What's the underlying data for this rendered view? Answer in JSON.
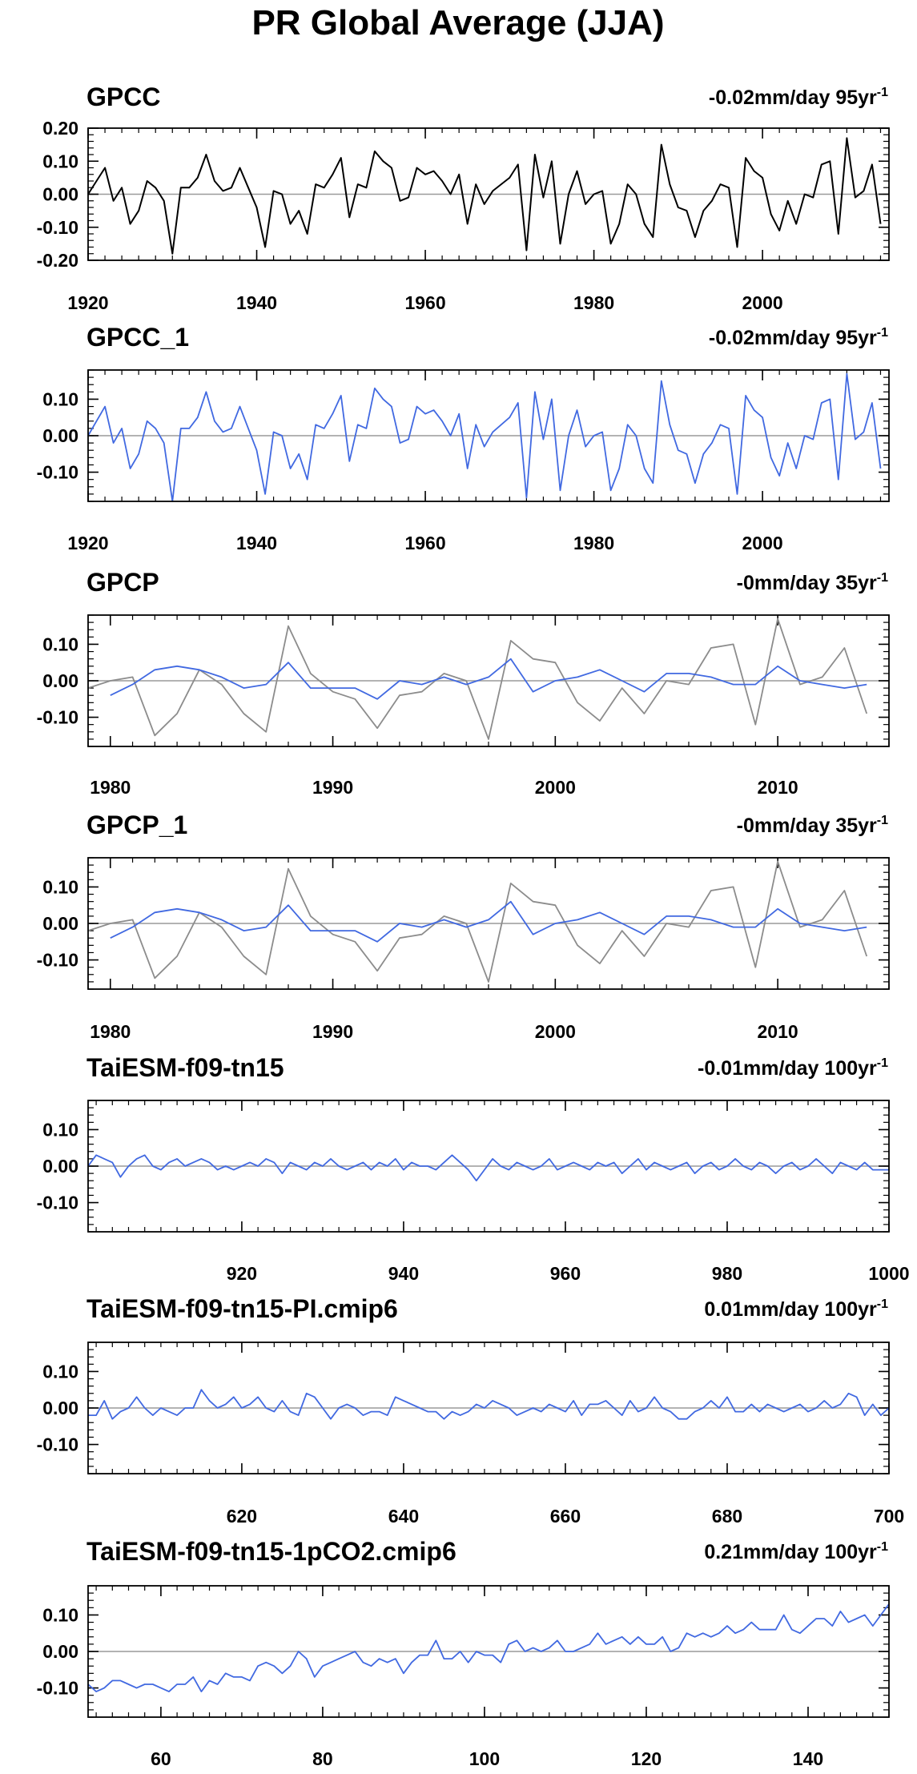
{
  "figure_title": "PR Global Average (JJA)",
  "colors": {
    "black": "#000000",
    "blue": "#4169e1",
    "gray": "#8c8c8c",
    "zero": "#9a9a9a"
  },
  "chart_data": [
    {
      "type": "line",
      "title": "GPCC",
      "trend_label": "-0.02mm/day 95yr",
      "trend_sup": "-1",
      "xlim": [
        1920,
        2015
      ],
      "ylim": [
        -0.2,
        0.2
      ],
      "xticks": [
        1920,
        1940,
        1960,
        1980,
        2000
      ],
      "yticks": [
        -0.2,
        -0.1,
        0.0,
        0.1,
        0.2
      ],
      "ytick_labels": [
        "-0.20",
        "-0.10",
        "0.00",
        "0.10",
        "0.20"
      ],
      "x_start": 1920,
      "series": [
        {
          "color": "black",
          "values": [
            0.0,
            0.04,
            0.08,
            -0.02,
            0.02,
            -0.09,
            -0.05,
            0.04,
            0.02,
            -0.02,
            -0.18,
            0.02,
            0.02,
            0.05,
            0.12,
            0.04,
            0.01,
            0.02,
            0.08,
            0.02,
            -0.04,
            -0.16,
            0.01,
            0.0,
            -0.09,
            -0.05,
            -0.12,
            0.03,
            0.02,
            0.06,
            0.11,
            -0.07,
            0.03,
            0.02,
            0.13,
            0.1,
            0.08,
            -0.02,
            -0.01,
            0.08,
            0.06,
            0.07,
            0.04,
            0.0,
            0.06,
            -0.09,
            0.03,
            -0.03,
            0.01,
            0.03,
            0.05,
            0.09,
            -0.17,
            0.12,
            -0.01,
            0.1,
            -0.15,
            0.0,
            0.07,
            -0.03,
            0.0,
            0.01,
            -0.15,
            -0.09,
            0.03,
            0.0,
            -0.09,
            -0.13,
            0.15,
            0.03,
            -0.04,
            -0.05,
            -0.13,
            -0.05,
            -0.02,
            0.03,
            0.02,
            -0.16,
            0.11,
            0.07,
            0.05,
            -0.06,
            -0.11,
            -0.02,
            -0.09,
            0.0,
            -0.01,
            0.09,
            0.1,
            -0.12,
            0.17,
            -0.01,
            0.01,
            0.09,
            -0.09
          ]
        }
      ]
    },
    {
      "type": "line",
      "title": "GPCC_1",
      "trend_label": "-0.02mm/day 95yr",
      "trend_sup": "-1",
      "xlim": [
        1920,
        2015
      ],
      "ylim": [
        -0.18,
        0.18
      ],
      "xticks": [
        1920,
        1940,
        1960,
        1980,
        2000
      ],
      "yticks": [
        -0.1,
        0.0,
        0.1
      ],
      "ytick_labels": [
        "-0.10",
        "0.00",
        "0.10"
      ],
      "x_start": 1920,
      "series": [
        {
          "color": "blue",
          "values": [
            0.0,
            0.04,
            0.08,
            -0.02,
            0.02,
            -0.09,
            -0.05,
            0.04,
            0.02,
            -0.02,
            -0.18,
            0.02,
            0.02,
            0.05,
            0.12,
            0.04,
            0.01,
            0.02,
            0.08,
            0.02,
            -0.04,
            -0.16,
            0.01,
            0.0,
            -0.09,
            -0.05,
            -0.12,
            0.03,
            0.02,
            0.06,
            0.11,
            -0.07,
            0.03,
            0.02,
            0.13,
            0.1,
            0.08,
            -0.02,
            -0.01,
            0.08,
            0.06,
            0.07,
            0.04,
            0.0,
            0.06,
            -0.09,
            0.03,
            -0.03,
            0.01,
            0.03,
            0.05,
            0.09,
            -0.17,
            0.12,
            -0.01,
            0.1,
            -0.15,
            0.0,
            0.07,
            -0.03,
            0.0,
            0.01,
            -0.15,
            -0.09,
            0.03,
            0.0,
            -0.09,
            -0.13,
            0.15,
            0.03,
            -0.04,
            -0.05,
            -0.13,
            -0.05,
            -0.02,
            0.03,
            0.02,
            -0.16,
            0.11,
            0.07,
            0.05,
            -0.06,
            -0.11,
            -0.02,
            -0.09,
            0.0,
            -0.01,
            0.09,
            0.1,
            -0.12,
            0.17,
            -0.01,
            0.01,
            0.09,
            -0.09
          ]
        }
      ]
    },
    {
      "type": "line",
      "title": "GPCP",
      "trend_label": "-0mm/day 35yr",
      "trend_sup": "-1",
      "xlim": [
        1979,
        2015
      ],
      "ylim": [
        -0.18,
        0.18
      ],
      "xticks": [
        1980,
        1990,
        2000,
        2010
      ],
      "yticks": [
        -0.1,
        0.0,
        0.1
      ],
      "ytick_labels": [
        "-0.10",
        "0.00",
        "0.10"
      ],
      "x_start": 1979,
      "series": [
        {
          "color": "gray",
          "values": [
            -0.02,
            0.0,
            0.01,
            -0.15,
            -0.09,
            0.03,
            -0.01,
            -0.09,
            -0.14,
            0.15,
            0.02,
            -0.03,
            -0.05,
            -0.13,
            -0.04,
            -0.03,
            0.02,
            0.0,
            -0.16,
            0.11,
            0.06,
            0.05,
            -0.06,
            -0.11,
            -0.02,
            -0.09,
            0.0,
            -0.01,
            0.09,
            0.1,
            -0.12,
            0.17,
            -0.01,
            0.01,
            0.09,
            -0.09
          ]
        },
        {
          "color": "blue",
          "x_start": 1980,
          "values": [
            -0.04,
            -0.01,
            0.03,
            0.04,
            0.03,
            0.01,
            -0.02,
            -0.01,
            0.05,
            -0.02,
            -0.02,
            -0.02,
            -0.05,
            0.0,
            -0.01,
            0.01,
            -0.01,
            0.01,
            0.06,
            -0.03,
            0.0,
            0.01,
            0.03,
            0.0,
            -0.03,
            0.02,
            0.02,
            0.01,
            -0.01,
            -0.01,
            0.04,
            0.0,
            -0.01,
            -0.02,
            -0.01
          ]
        }
      ]
    },
    {
      "type": "line",
      "title": "GPCP_1",
      "trend_label": "-0mm/day 35yr",
      "trend_sup": "-1",
      "xlim": [
        1979,
        2015
      ],
      "ylim": [
        -0.18,
        0.18
      ],
      "xticks": [
        1980,
        1990,
        2000,
        2010
      ],
      "yticks": [
        -0.1,
        0.0,
        0.1
      ],
      "ytick_labels": [
        "-0.10",
        "0.00",
        "0.10"
      ],
      "x_start": 1979,
      "series": [
        {
          "color": "gray",
          "values": [
            -0.02,
            0.0,
            0.01,
            -0.15,
            -0.09,
            0.03,
            -0.01,
            -0.09,
            -0.14,
            0.15,
            0.02,
            -0.03,
            -0.05,
            -0.13,
            -0.04,
            -0.03,
            0.02,
            0.0,
            -0.16,
            0.11,
            0.06,
            0.05,
            -0.06,
            -0.11,
            -0.02,
            -0.09,
            0.0,
            -0.01,
            0.09,
            0.1,
            -0.12,
            0.17,
            -0.01,
            0.01,
            0.09,
            -0.09
          ]
        },
        {
          "color": "blue",
          "x_start": 1980,
          "values": [
            -0.04,
            -0.01,
            0.03,
            0.04,
            0.03,
            0.01,
            -0.02,
            -0.01,
            0.05,
            -0.02,
            -0.02,
            -0.02,
            -0.05,
            0.0,
            -0.01,
            0.01,
            -0.01,
            0.01,
            0.06,
            -0.03,
            0.0,
            0.01,
            0.03,
            0.0,
            -0.03,
            0.02,
            0.02,
            0.01,
            -0.01,
            -0.01,
            0.04,
            0.0,
            -0.01,
            -0.02,
            -0.01
          ]
        }
      ]
    },
    {
      "type": "line",
      "title": "TaiESM-f09-tn15",
      "trend_label": "-0.01mm/day 100yr",
      "trend_sup": "-1",
      "xlim": [
        901,
        1000
      ],
      "ylim": [
        -0.18,
        0.18
      ],
      "xticks": [
        920,
        940,
        960,
        980,
        1000
      ],
      "yticks": [
        -0.1,
        0.0,
        0.1
      ],
      "ytick_labels": [
        "-0.10",
        "0.00",
        "0.10"
      ],
      "x_start": 901,
      "series": [
        {
          "color": "blue",
          "values": [
            0.0,
            0.03,
            0.02,
            0.01,
            -0.03,
            0.0,
            0.02,
            0.03,
            0.0,
            -0.01,
            0.01,
            0.02,
            0.0,
            0.01,
            0.02,
            0.01,
            -0.01,
            0.0,
            -0.01,
            0.0,
            0.01,
            0.0,
            0.02,
            0.01,
            -0.02,
            0.01,
            0.0,
            -0.01,
            0.01,
            0.0,
            0.02,
            0.0,
            -0.01,
            0.0,
            0.01,
            -0.01,
            0.01,
            0.0,
            0.02,
            -0.01,
            0.01,
            0.0,
            0.0,
            -0.01,
            0.01,
            0.03,
            0.01,
            -0.01,
            -0.04,
            -0.01,
            0.02,
            0.0,
            -0.01,
            0.01,
            0.0,
            -0.01,
            0.0,
            0.02,
            -0.01,
            0.0,
            0.01,
            0.0,
            -0.01,
            0.01,
            0.0,
            0.01,
            -0.02,
            0.0,
            0.02,
            -0.01,
            0.01,
            0.0,
            -0.01,
            0.0,
            0.01,
            -0.02,
            0.0,
            0.01,
            -0.01,
            0.0,
            0.02,
            0.0,
            -0.01,
            0.01,
            0.0,
            -0.02,
            0.0,
            0.01,
            -0.01,
            0.0,
            0.02,
            0.0,
            -0.02,
            0.01,
            0.0,
            -0.01,
            0.01,
            -0.01,
            -0.01,
            -0.01
          ]
        }
      ]
    },
    {
      "type": "line",
      "title": "TaiESM-f09-tn15-PI.cmip6",
      "trend_label": "0.01mm/day 100yr",
      "trend_sup": "-1",
      "xlim": [
        601,
        700
      ],
      "ylim": [
        -0.18,
        0.18
      ],
      "xticks": [
        620,
        640,
        660,
        680,
        700
      ],
      "yticks": [
        -0.1,
        0.0,
        0.1
      ],
      "ytick_labels": [
        "-0.10",
        "0.00",
        "0.10"
      ],
      "x_start": 601,
      "series": [
        {
          "color": "blue",
          "values": [
            -0.02,
            -0.02,
            0.02,
            -0.03,
            -0.01,
            0.0,
            0.03,
            0.0,
            -0.02,
            0.0,
            -0.01,
            -0.02,
            0.0,
            0.0,
            0.05,
            0.02,
            0.0,
            0.01,
            0.03,
            0.0,
            0.01,
            0.03,
            0.0,
            -0.01,
            0.02,
            -0.01,
            -0.02,
            0.04,
            0.03,
            0.0,
            -0.03,
            0.0,
            0.01,
            0.0,
            -0.02,
            -0.01,
            -0.01,
            -0.02,
            0.03,
            0.02,
            0.01,
            0.0,
            -0.01,
            -0.01,
            -0.03,
            -0.01,
            -0.02,
            -0.01,
            0.01,
            0.0,
            0.02,
            0.01,
            0.0,
            -0.02,
            -0.01,
            0.0,
            -0.01,
            0.01,
            0.0,
            -0.01,
            0.02,
            -0.02,
            0.01,
            0.01,
            0.02,
            0.0,
            -0.02,
            0.02,
            -0.01,
            0.0,
            0.03,
            0.0,
            -0.01,
            -0.03,
            -0.03,
            -0.01,
            0.0,
            0.02,
            0.0,
            0.03,
            -0.01,
            -0.01,
            0.01,
            -0.01,
            0.01,
            0.0,
            -0.01,
            0.0,
            0.01,
            -0.01,
            0.0,
            0.02,
            0.0,
            0.01,
            0.04,
            0.03,
            -0.02,
            0.01,
            -0.02,
            0.0
          ]
        }
      ]
    },
    {
      "type": "line",
      "title": "TaiESM-f09-tn15-1pCO2.cmip6",
      "trend_label": "0.21mm/day 100yr",
      "trend_sup": "-1",
      "xlim": [
        51,
        150
      ],
      "ylim": [
        -0.18,
        0.18
      ],
      "xticks": [
        60,
        80,
        100,
        120,
        140
      ],
      "yticks": [
        -0.1,
        0.0,
        0.1
      ],
      "ytick_labels": [
        "-0.10",
        "0.00",
        "0.10"
      ],
      "x_start": 51,
      "series": [
        {
          "color": "blue",
          "values": [
            -0.09,
            -0.11,
            -0.1,
            -0.08,
            -0.08,
            -0.09,
            -0.1,
            -0.09,
            -0.09,
            -0.1,
            -0.11,
            -0.09,
            -0.09,
            -0.07,
            -0.11,
            -0.08,
            -0.09,
            -0.06,
            -0.07,
            -0.07,
            -0.08,
            -0.04,
            -0.03,
            -0.04,
            -0.06,
            -0.04,
            0.0,
            -0.02,
            -0.07,
            -0.04,
            -0.03,
            -0.02,
            -0.01,
            0.0,
            -0.03,
            -0.04,
            -0.02,
            -0.03,
            -0.02,
            -0.06,
            -0.03,
            -0.01,
            -0.01,
            0.03,
            -0.02,
            -0.02,
            0.0,
            -0.03,
            0.0,
            -0.01,
            -0.01,
            -0.03,
            0.02,
            0.03,
            0.0,
            0.01,
            0.0,
            0.01,
            0.03,
            0.0,
            0.0,
            0.01,
            0.02,
            0.05,
            0.02,
            0.03,
            0.04,
            0.02,
            0.04,
            0.02,
            0.02,
            0.04,
            0.0,
            0.01,
            0.05,
            0.04,
            0.05,
            0.04,
            0.05,
            0.07,
            0.05,
            0.06,
            0.08,
            0.06,
            0.06,
            0.06,
            0.1,
            0.06,
            0.05,
            0.07,
            0.09,
            0.09,
            0.07,
            0.11,
            0.08,
            0.09,
            0.1,
            0.07,
            0.1,
            0.13
          ]
        }
      ]
    }
  ]
}
